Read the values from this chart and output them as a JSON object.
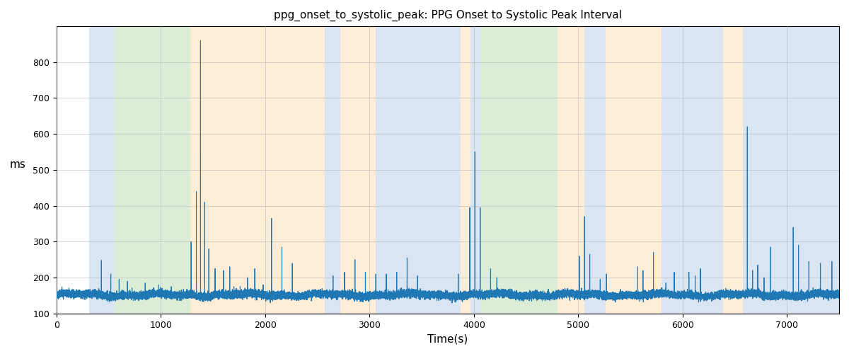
{
  "title": "ppg_onset_to_systolic_peak: PPG Onset to Systolic Peak Interval",
  "xlabel": "Time(s)",
  "ylabel": "ms",
  "xlim": [
    0,
    7500
  ],
  "ylim": [
    100,
    900
  ],
  "yticks": [
    100,
    200,
    300,
    400,
    500,
    600,
    700,
    800
  ],
  "xticks": [
    0,
    1000,
    2000,
    3000,
    4000,
    5000,
    6000,
    7000
  ],
  "line_color": "#1f77b4",
  "line_width": 0.8,
  "background_color": "#ffffff",
  "grid_color": "#b0b0b0",
  "regions": [
    {
      "start": 310,
      "end": 560,
      "color": "#aec6e8",
      "alpha": 0.45
    },
    {
      "start": 560,
      "end": 1280,
      "color": "#b2d8a8",
      "alpha": 0.45
    },
    {
      "start": 1280,
      "end": 1520,
      "color": "#fdd9a8",
      "alpha": 0.45
    },
    {
      "start": 1520,
      "end": 2570,
      "color": "#fdd9a8",
      "alpha": 0.45
    },
    {
      "start": 2570,
      "end": 2720,
      "color": "#aec6e8",
      "alpha": 0.45
    },
    {
      "start": 2720,
      "end": 3060,
      "color": "#fdd9a8",
      "alpha": 0.45
    },
    {
      "start": 3060,
      "end": 3870,
      "color": "#aec6e8",
      "alpha": 0.45
    },
    {
      "start": 3870,
      "end": 3970,
      "color": "#fdd9a8",
      "alpha": 0.45
    },
    {
      "start": 3970,
      "end": 4060,
      "color": "#aec6e8",
      "alpha": 0.45
    },
    {
      "start": 4060,
      "end": 4800,
      "color": "#b2d8a8",
      "alpha": 0.45
    },
    {
      "start": 4800,
      "end": 5060,
      "color": "#fdd9a8",
      "alpha": 0.45
    },
    {
      "start": 5060,
      "end": 5260,
      "color": "#aec6e8",
      "alpha": 0.45
    },
    {
      "start": 5260,
      "end": 5800,
      "color": "#fdd9a8",
      "alpha": 0.45
    },
    {
      "start": 5800,
      "end": 6000,
      "color": "#aec6e8",
      "alpha": 0.45
    },
    {
      "start": 6000,
      "end": 6390,
      "color": "#aec6e8",
      "alpha": 0.45
    },
    {
      "start": 6390,
      "end": 6580,
      "color": "#fdd9a8",
      "alpha": 0.45
    },
    {
      "start": 6580,
      "end": 7500,
      "color": "#aec6e8",
      "alpha": 0.45
    }
  ],
  "base_value": 152,
  "noise_std": 5,
  "seed": 42
}
